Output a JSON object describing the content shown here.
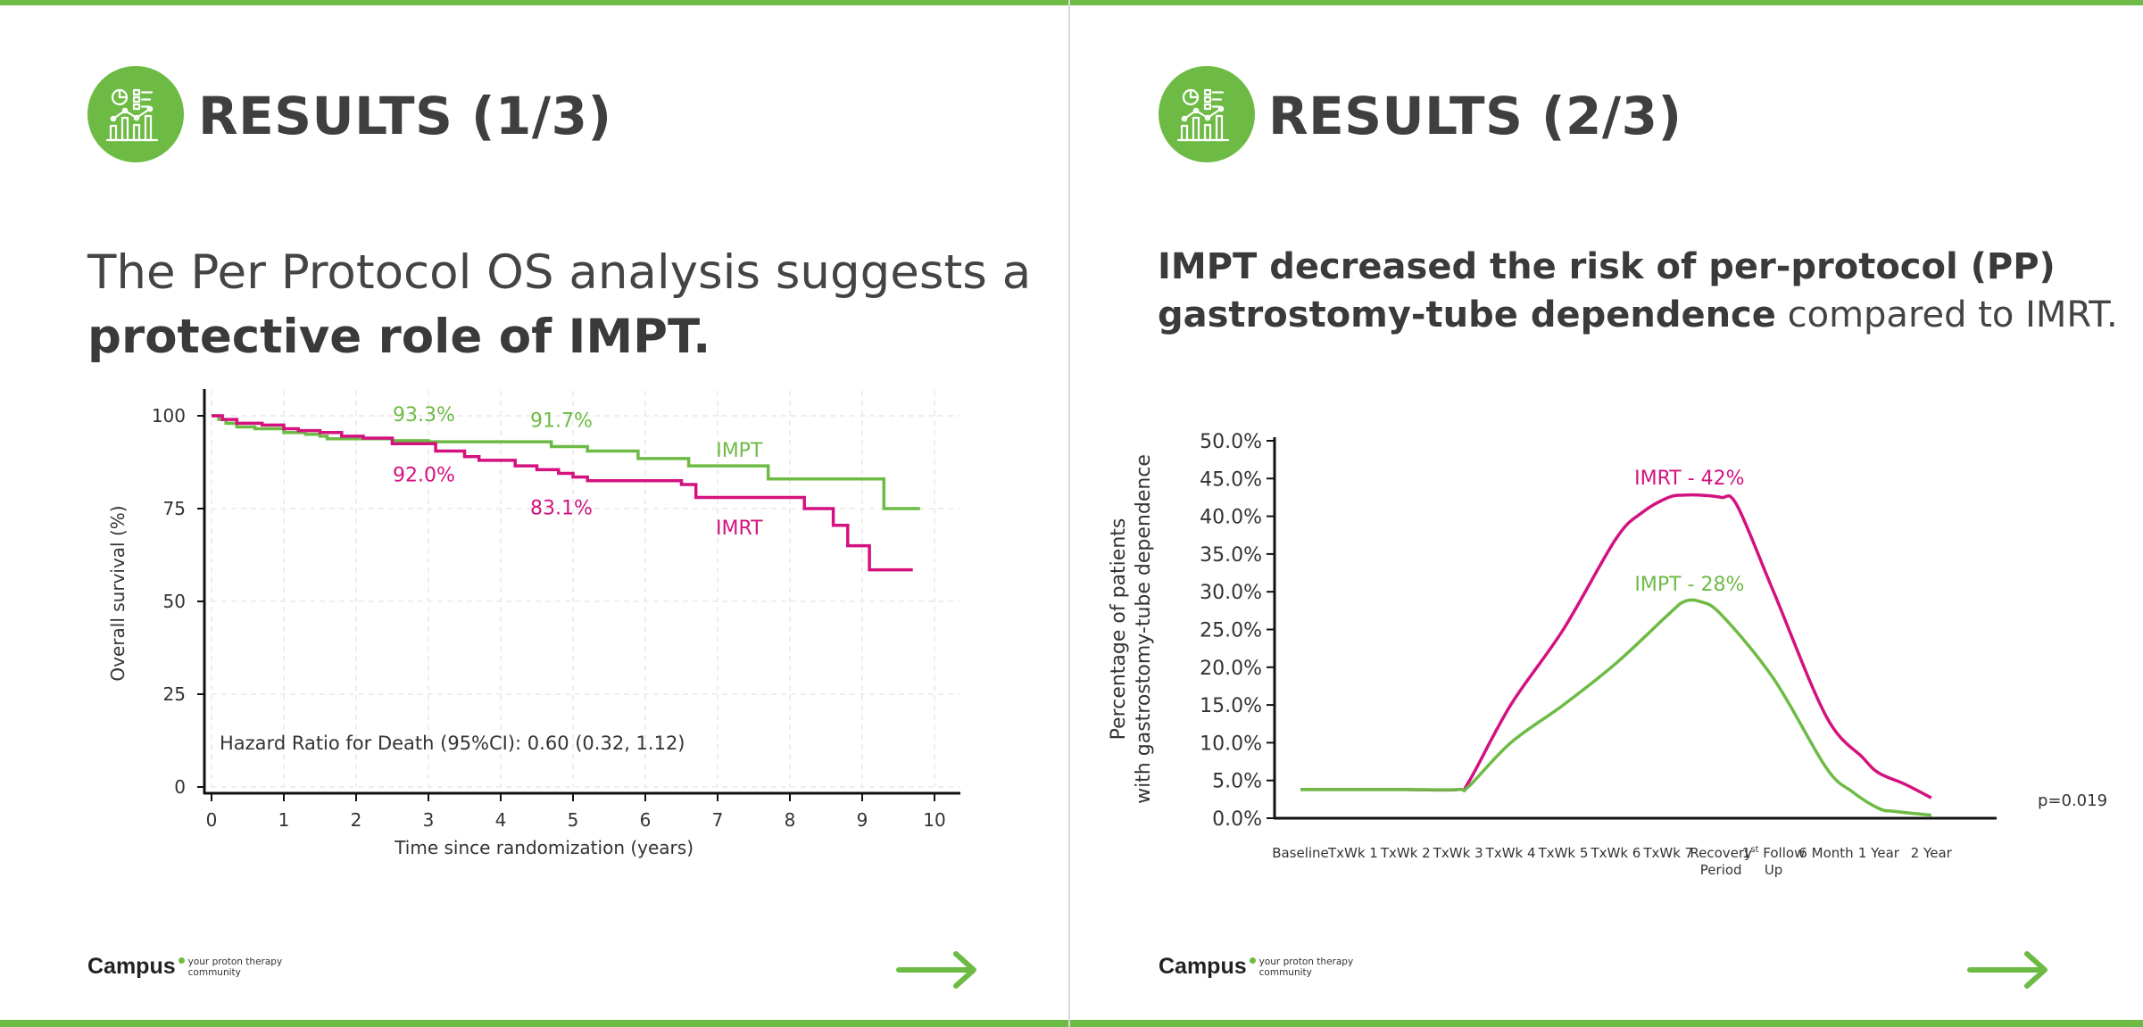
{
  "theme": {
    "accent": "#6dbb45",
    "impt_color": "#6dbb45",
    "imrt_color": "#d4127f",
    "text": "#3f3f3f"
  },
  "brand": {
    "name": "Campus",
    "tagline": "your proton therapy community"
  },
  "slide1": {
    "title": "RESULTS (1/3)",
    "headline": {
      "normal": "The Per Protocol OS analysis suggests a ",
      "bold": "protective role of IMPT."
    },
    "icon": "analytics-chart-icon",
    "nav_icon": "arrow-right-icon"
  },
  "slide2": {
    "title": "RESULTS (2/3)",
    "headline": {
      "bold": "IMPT decreased the risk of per-protocol (PP) gastrostomy-tube dependence",
      "normal": " compared to IMRT."
    },
    "icon": "analytics-chart-icon",
    "nav_icon": "arrow-right-icon"
  },
  "chart_data": [
    {
      "type": "line",
      "step": true,
      "xlabel": "Time since randomization (years)",
      "ylabel": "Overall survival (%)",
      "xlim": [
        0,
        10
      ],
      "ylim": [
        0,
        100
      ],
      "xticks": [
        "0",
        "1",
        "2",
        "3",
        "4",
        "5",
        "6",
        "7",
        "8",
        "9",
        "10"
      ],
      "yticks": [
        "0",
        "25",
        "50",
        "75",
        "100"
      ],
      "grid": true,
      "annotation": "Hazard Ratio for Death (95%CI): 0.60 (0.32, 1.12)",
      "series": [
        {
          "name": "IMPT",
          "color": "#6dbb45",
          "x": [
            0,
            0.1,
            0.2,
            0.35,
            0.6,
            1.0,
            1.3,
            1.5,
            1.6,
            2.5,
            3.0,
            4.0,
            4.7,
            5.2,
            5.9,
            6.6,
            7.7,
            9.3,
            9.8
          ],
          "y": [
            100,
            99,
            98,
            97,
            96.5,
            95.5,
            95,
            94.5,
            93.8,
            93.3,
            93,
            93,
            91.7,
            90.5,
            88.5,
            86.5,
            83,
            75,
            75
          ],
          "point_labels": [
            {
              "x": 3.0,
              "y": 93.3,
              "text": "93.3%"
            },
            {
              "x": 4.9,
              "y": 91.7,
              "text": "91.7%"
            }
          ]
        },
        {
          "name": "IMRT",
          "color": "#d4127f",
          "x": [
            0,
            0.15,
            0.35,
            0.7,
            1.0,
            1.2,
            1.5,
            1.8,
            2.1,
            2.5,
            3.1,
            3.5,
            3.7,
            4.2,
            4.5,
            4.8,
            5.0,
            5.2,
            6.5,
            6.7,
            8.2,
            8.6,
            8.8,
            9.1,
            9.7
          ],
          "y": [
            100,
            99,
            98,
            97.5,
            96.5,
            96,
            95.5,
            94.5,
            94,
            92.5,
            90.5,
            89,
            88,
            86.5,
            85.5,
            84.5,
            83.5,
            82.5,
            81.5,
            78,
            75,
            70.5,
            65,
            58.5,
            58.5
          ],
          "point_labels": [
            {
              "x": 3.0,
              "y": 92.0,
              "text": "92.0%"
            },
            {
              "x": 4.9,
              "y": 83.1,
              "text": "83.1%"
            }
          ]
        }
      ],
      "series_labels": [
        {
          "name": "IMPT",
          "x": 7.3,
          "y": 89
        },
        {
          "name": "IMRT",
          "x": 7.3,
          "y": 68
        }
      ]
    },
    {
      "type": "line",
      "smooth": true,
      "xlabel": "",
      "ylabel_lines": [
        "Percentage of patients",
        "with gastrostomy-tube dependence"
      ],
      "ylim": [
        0,
        50
      ],
      "yticks": [
        "0.0%",
        "5.0%",
        "10.0%",
        "15.0%",
        "20.0%",
        "25.0%",
        "30.0%",
        "35.0%",
        "40.0%",
        "45.0%",
        "50.0%"
      ],
      "categories": [
        [
          "Baseline"
        ],
        [
          "TxWk 1"
        ],
        [
          "TxWk 2"
        ],
        [
          "TxWk 3"
        ],
        [
          "TxWk 4"
        ],
        [
          "TxWk 5"
        ],
        [
          "TxWk 6"
        ],
        [
          "TxWk 7"
        ],
        [
          "Recovery",
          "Period"
        ],
        [
          "1st Follow",
          "Up"
        ],
        [
          "6 Month"
        ],
        [
          "1 Year"
        ],
        [
          "2 Year"
        ]
      ],
      "grid": false,
      "annotation": "p=0.019",
      "series": [
        {
          "name": "IMRT - 42%",
          "color": "#d4127f",
          "x": [
            0,
            1,
            2,
            3,
            3.2,
            4,
            5,
            6,
            6.5,
            7,
            7.3,
            7.6,
            8,
            8.3,
            9,
            10,
            10.7,
            11,
            11.5,
            12
          ],
          "y": [
            3.8,
            3.8,
            3.8,
            3.8,
            4.8,
            15,
            25,
            37,
            40.5,
            42.5,
            42.8,
            42.8,
            42.5,
            41.5,
            30,
            13.5,
            8,
            6,
            4.5,
            2.7
          ]
        },
        {
          "name": "IMPT - 28%",
          "color": "#6dbb45",
          "x": [
            0,
            1,
            2,
            3,
            3.2,
            4,
            5,
            6,
            7,
            7.3,
            7.6,
            8,
            9,
            10,
            10.5,
            11,
            11.3,
            12
          ],
          "y": [
            3.8,
            3.8,
            3.8,
            3.8,
            4.2,
            10,
            15,
            20.5,
            27,
            28.7,
            28.7,
            27,
            18.5,
            6.7,
            3.5,
            1.3,
            0.9,
            0.4
          ]
        }
      ]
    }
  ]
}
